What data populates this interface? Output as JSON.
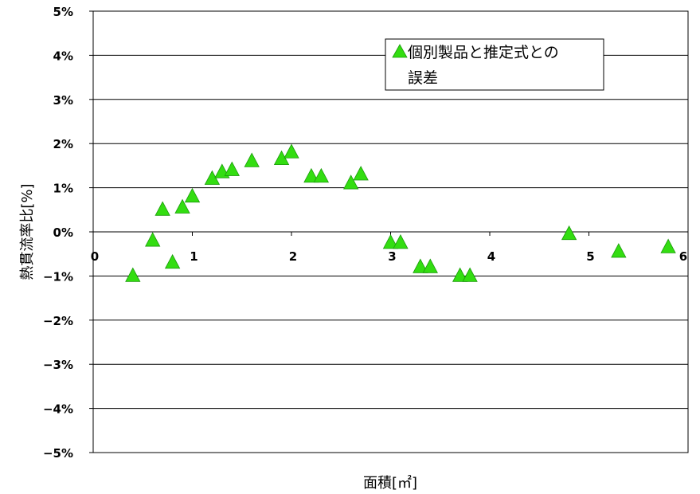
{
  "chart_data": {
    "type": "scatter",
    "xlabel": "面積[㎡]",
    "ylabel": "熱貫流率比[%]",
    "xlim": [
      0,
      6
    ],
    "ylim": [
      -5,
      5
    ],
    "x_ticks": [
      "0",
      "1",
      "2",
      "3",
      "4",
      "5",
      "6"
    ],
    "y_ticks": [
      "5%",
      "4%",
      "3%",
      "2%",
      "1%",
      "0%",
      "−1%",
      "−2%",
      "−3%",
      "−4%",
      "−5%"
    ],
    "grid": "horizontal",
    "legend_position": "top-right",
    "marker": "triangle",
    "color": "#33dd11",
    "series": [
      {
        "name": "個別製品と推定式との誤差",
        "points": [
          [
            0.4,
            -1.0
          ],
          [
            0.6,
            -0.2
          ],
          [
            0.7,
            0.5
          ],
          [
            0.8,
            -0.7
          ],
          [
            0.9,
            0.55
          ],
          [
            1.0,
            0.8
          ],
          [
            1.2,
            1.2
          ],
          [
            1.3,
            1.35
          ],
          [
            1.4,
            1.4
          ],
          [
            1.6,
            1.6
          ],
          [
            1.9,
            1.65
          ],
          [
            2.0,
            1.8
          ],
          [
            2.2,
            1.25
          ],
          [
            2.3,
            1.25
          ],
          [
            2.6,
            1.1
          ],
          [
            2.7,
            1.3
          ],
          [
            3.0,
            -0.25
          ],
          [
            3.1,
            -0.25
          ],
          [
            3.3,
            -0.8
          ],
          [
            3.4,
            -0.8
          ],
          [
            3.7,
            -1.0
          ],
          [
            3.8,
            -1.0
          ],
          [
            4.8,
            -0.05
          ],
          [
            5.3,
            -0.45
          ],
          [
            5.8,
            -0.35
          ]
        ]
      }
    ]
  }
}
